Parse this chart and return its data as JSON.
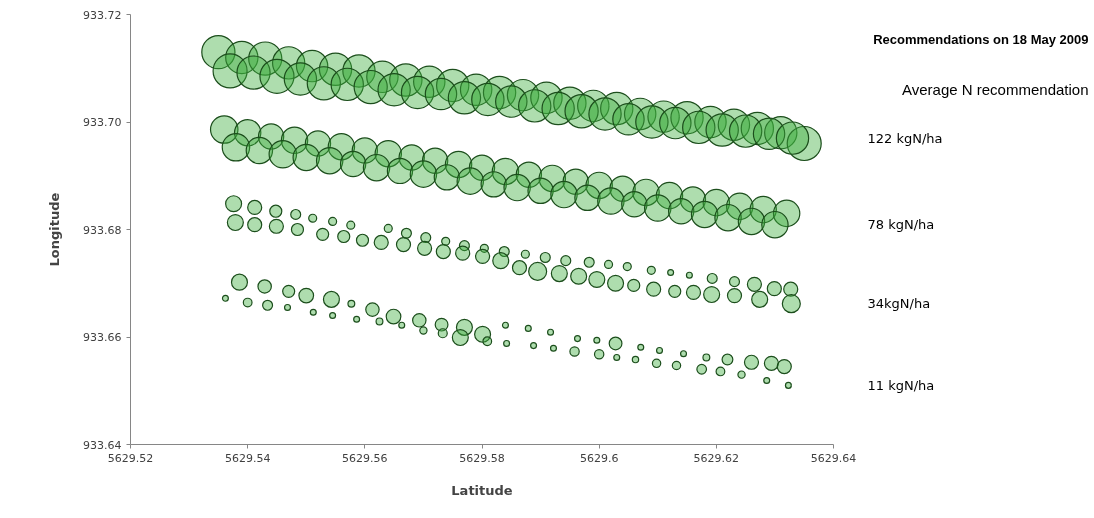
{
  "chart_data": {
    "type": "bubble",
    "title": "Recommendations on 18 May 2009",
    "legend_title": "Average N recommendation",
    "xlabel": "Latitude",
    "ylabel": "Longitude",
    "xlim": [
      5629.52,
      5629.64
    ],
    "xticks": [
      5629.52,
      5629.54,
      5629.56,
      5629.58,
      5629.6,
      5629.62,
      5629.64
    ],
    "ylim": [
      933.64,
      933.72
    ],
    "yticks": [
      933.64,
      933.66,
      933.68,
      {
        "value": 933.7,
        "label": "933.70"
      },
      933.72
    ],
    "grid": false,
    "marker": "circle",
    "series": [
      {
        "name": "122 kgN/ha",
        "color": "#3fae3f",
        "x": [
          5629.535,
          5629.539,
          5629.543,
          5629.547,
          5629.551,
          5629.555,
          5629.559,
          5629.563,
          5629.567,
          5629.571,
          5629.575,
          5629.579,
          5629.583,
          5629.587,
          5629.591,
          5629.595,
          5629.599,
          5629.603,
          5629.607,
          5629.611,
          5629.615,
          5629.619,
          5629.623,
          5629.627,
          5629.631,
          5629.635,
          5629.537,
          5629.541,
          5629.545,
          5629.549,
          5629.553,
          5629.557,
          5629.561,
          5629.565,
          5629.569,
          5629.573,
          5629.577,
          5629.581,
          5629.585,
          5629.589,
          5629.593,
          5629.597,
          5629.601,
          5629.605,
          5629.609,
          5629.613,
          5629.617,
          5629.621,
          5629.625,
          5629.629,
          5629.633
        ],
        "values": [
          933.713,
          933.712,
          933.7118,
          933.711,
          933.7104,
          933.7098,
          933.7095,
          933.7084,
          933.7078,
          933.7075,
          933.7068,
          933.706,
          933.7055,
          933.705,
          933.7045,
          933.7035,
          933.703,
          933.7025,
          933.7015,
          933.701,
          933.7008,
          933.7,
          933.6995,
          933.6988,
          933.698,
          933.696,
          933.7095,
          933.7092,
          933.7085,
          933.708,
          933.7072,
          933.707,
          933.7065,
          933.706,
          933.7055,
          933.7052,
          933.7045,
          933.7042,
          933.7038,
          933.703,
          933.7025,
          933.702,
          933.7015,
          933.7005,
          933.7,
          933.6998,
          933.699,
          933.6985,
          933.6983,
          933.6978,
          933.697
        ],
        "sizes": [
          0.95,
          0.9,
          0.95,
          0.9,
          0.85,
          0.9,
          0.9,
          0.85,
          0.9,
          0.85,
          0.9,
          0.85,
          0.9,
          0.85,
          0.85,
          0.9,
          0.85,
          0.9,
          0.85,
          0.85,
          0.9,
          0.85,
          0.85,
          0.9,
          0.9,
          1.0,
          1.0,
          0.95,
          1.0,
          0.9,
          0.95,
          0.9,
          0.95,
          0.9,
          0.9,
          0.85,
          0.9,
          0.9,
          0.85,
          0.9,
          0.9,
          0.95,
          0.9,
          0.85,
          0.9,
          0.85,
          0.9,
          0.9,
          0.9,
          0.85,
          0.9
        ]
      },
      {
        "name": "78 kgN/ha",
        "color": "#3fae3f",
        "x": [
          5629.536,
          5629.54,
          5629.544,
          5629.548,
          5629.552,
          5629.556,
          5629.56,
          5629.564,
          5629.568,
          5629.572,
          5629.576,
          5629.58,
          5629.584,
          5629.588,
          5629.592,
          5629.596,
          5629.6,
          5629.604,
          5629.608,
          5629.612,
          5629.616,
          5629.62,
          5629.624,
          5629.628,
          5629.632,
          5629.538,
          5629.542,
          5629.546,
          5629.55,
          5629.554,
          5629.558,
          5629.562,
          5629.566,
          5629.57,
          5629.574,
          5629.578,
          5629.582,
          5629.586,
          5629.59,
          5629.594,
          5629.598,
          5629.602,
          5629.606,
          5629.61,
          5629.614,
          5629.618,
          5629.622,
          5629.626,
          5629.63
        ],
        "values": [
          933.6986,
          933.698,
          933.6973,
          933.6966,
          933.696,
          933.6954,
          933.6947,
          933.6941,
          933.6934,
          933.6928,
          933.6921,
          933.6915,
          933.6908,
          933.6902,
          933.6895,
          933.6889,
          933.6882,
          933.6876,
          933.6869,
          933.6863,
          933.6856,
          933.685,
          933.6843,
          933.6837,
          933.683,
          933.6953,
          933.6947,
          933.694,
          933.6934,
          933.6928,
          933.6922,
          933.6915,
          933.6909,
          933.6903,
          933.6897,
          933.689,
          933.6884,
          933.6878,
          933.6872,
          933.6865,
          933.6859,
          933.6853,
          933.6847,
          933.684,
          933.6834,
          933.6828,
          933.6822,
          933.6815,
          933.6809
        ],
        "sizes": [
          0.65,
          0.6,
          0.55,
          0.6,
          0.55,
          0.6,
          0.55,
          0.6,
          0.55,
          0.55,
          0.6,
          0.55,
          0.6,
          0.55,
          0.6,
          0.55,
          0.6,
          0.55,
          0.6,
          0.6,
          0.55,
          0.6,
          0.6,
          0.6,
          0.6,
          0.65,
          0.6,
          0.65,
          0.6,
          0.6,
          0.55,
          0.6,
          0.55,
          0.6,
          0.55,
          0.6,
          0.55,
          0.6,
          0.55,
          0.6,
          0.55,
          0.6,
          0.55,
          0.6,
          0.55,
          0.6,
          0.6,
          0.6,
          0.6
        ]
      },
      {
        "name": "34kgN/ha",
        "color": "#3fae3f",
        "x": [
          5629.5376,
          5629.5412,
          5629.5448,
          5629.5482,
          5629.5511,
          5629.5545,
          5629.5576,
          5629.564,
          5629.5671,
          5629.5704,
          5629.5738,
          5629.577,
          5629.5804,
          5629.5838,
          5629.5874,
          5629.5908,
          5629.5943,
          5629.5983,
          5629.6016,
          5629.6048,
          5629.6089,
          5629.6122,
          5629.6154,
          5629.6193,
          5629.6231,
          5629.6265,
          5629.6299,
          5629.6327,
          5629.5379,
          5629.5412,
          5629.5449,
          5629.5485,
          5629.5528,
          5629.5564,
          5629.5596,
          5629.5628,
          5629.5666,
          5629.5702,
          5629.5734,
          5629.5767,
          5629.5801,
          5629.5832,
          5629.5864,
          5629.5895,
          5629.5932,
          5629.5965,
          5629.5996,
          5629.6028,
          5629.6059,
          5629.6093,
          5629.6129,
          5629.6161,
          5629.6192,
          5629.6231,
          5629.6274,
          5629.6328
        ],
        "values": [
          933.6848,
          933.6841,
          933.6834,
          933.6828,
          933.6821,
          933.6815,
          933.6808,
          933.6802,
          933.6793,
          933.6785,
          933.6778,
          933.677,
          933.6765,
          933.6759,
          933.6754,
          933.6748,
          933.6742,
          933.6739,
          933.6735,
          933.6731,
          933.6724,
          933.672,
          933.6715,
          933.6709,
          933.6703,
          933.6698,
          933.669,
          933.6689,
          933.6813,
          933.6809,
          933.6806,
          933.68,
          933.6791,
          933.6787,
          933.678,
          933.6776,
          933.6772,
          933.6765,
          933.6759,
          933.6756,
          933.675,
          933.6742,
          933.6729,
          933.6722,
          933.6718,
          933.6713,
          933.6707,
          933.67,
          933.6696,
          933.6689,
          933.6685,
          933.6683,
          933.6679,
          933.6677,
          933.667,
          933.6662
        ],
        "sizes": [
          0.22,
          0.17,
          0.125,
          0.085,
          0.055,
          0.055,
          0.055,
          0.055,
          0.085,
          0.085,
          0.055,
          0.085,
          0.055,
          0.085,
          0.055,
          0.085,
          0.085,
          0.085,
          0.055,
          0.055,
          0.055,
          0.03,
          0.03,
          0.085,
          0.085,
          0.17,
          0.17,
          0.17,
          0.22,
          0.17,
          0.17,
          0.125,
          0.125,
          0.125,
          0.125,
          0.17,
          0.17,
          0.17,
          0.17,
          0.17,
          0.17,
          0.22,
          0.17,
          0.28,
          0.22,
          0.22,
          0.22,
          0.22,
          0.125,
          0.17,
          0.125,
          0.17,
          0.22,
          0.17,
          0.22,
          0.28
        ]
      },
      {
        "name": "11 kgN/ha",
        "color": "#3fae3f",
        "x": [
          5629.5386,
          5629.5429,
          5629.547,
          5629.55,
          5629.5543,
          5629.5577,
          5629.5613,
          5629.5649,
          5629.5693,
          5629.5731,
          5629.577,
          5629.5801,
          5629.584,
          5629.5879,
          5629.5917,
          5629.5963,
          5629.5996,
          5629.6028,
          5629.6071,
          5629.6103,
          5629.6144,
          5629.6183,
          5629.6219,
          5629.626,
          5629.6294,
          5629.6316,
          5629.5362,
          5629.54,
          5629.5434,
          5629.5468,
          5629.5512,
          5629.5545,
          5629.5586,
          5629.5625,
          5629.5663,
          5629.57,
          5629.5733,
          5629.5763,
          5629.5809,
          5629.5842,
          5629.5888,
          5629.5922,
          5629.5958,
          5629.6,
          5629.603,
          5629.6062,
          5629.6098,
          5629.6132,
          5629.6175,
          5629.6207,
          5629.6243,
          5629.6286,
          5629.6323
        ],
        "values": [
          933.6702,
          933.6694,
          933.6685,
          933.6677,
          933.667,
          933.6662,
          933.6651,
          933.6638,
          933.6631,
          933.6623,
          933.6618,
          933.6605,
          933.6622,
          933.6616,
          933.6609,
          933.6597,
          933.6594,
          933.6588,
          933.6581,
          933.6575,
          933.6569,
          933.6562,
          933.6558,
          933.6553,
          933.6551,
          933.6545,
          933.6672,
          933.6664,
          933.6659,
          933.6655,
          933.6646,
          933.664,
          933.6633,
          933.6629,
          933.6622,
          933.6612,
          933.6607,
          933.6599,
          933.6592,
          933.6588,
          933.6584,
          933.6579,
          933.6573,
          933.6568,
          933.6562,
          933.6558,
          933.6551,
          933.6547,
          933.654,
          933.6536,
          933.653,
          933.6519,
          933.651
        ],
        "sizes": [
          0.22,
          0.155,
          0.125,
          0.185,
          0.22,
          0.04,
          0.155,
          0.185,
          0.155,
          0.14,
          0.22,
          0.22,
          0.03,
          0.03,
          0.03,
          0.03,
          0.03,
          0.14,
          0.03,
          0.03,
          0.03,
          0.04,
          0.1,
          0.17,
          0.17,
          0.17,
          0.03,
          0.065,
          0.085,
          0.03,
          0.03,
          0.03,
          0.03,
          0.04,
          0.03,
          0.045,
          0.07,
          0.22,
          0.065,
          0.03,
          0.03,
          0.03,
          0.075,
          0.075,
          0.03,
          0.035,
          0.06,
          0.06,
          0.08,
          0.065,
          0.045,
          0.03,
          0.03
        ]
      }
    ]
  }
}
